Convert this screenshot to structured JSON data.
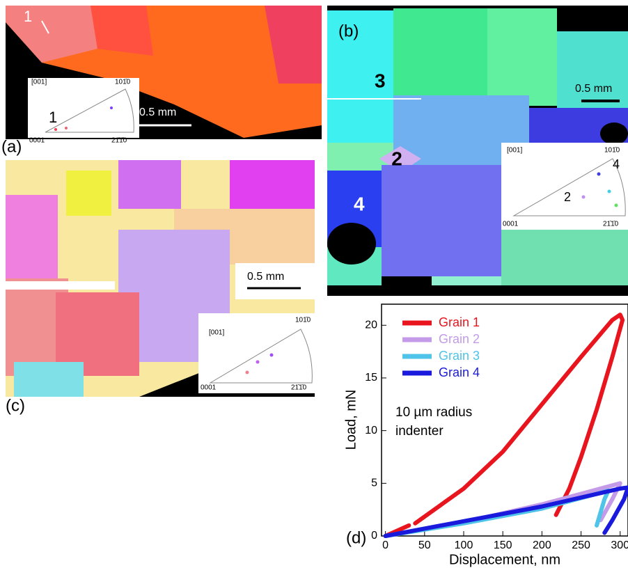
{
  "panels": {
    "a": {
      "label": "(a)",
      "grain": "1",
      "pole_grain": "1",
      "pole_title": "[001]",
      "pole_top": "101̄0",
      "pole_left": "0001",
      "pole_right": "21̄1̄0",
      "scale": "0.5 mm"
    },
    "b": {
      "label": "(b)",
      "grains": [
        "3",
        "2",
        "4"
      ],
      "pole_grains": [
        "4",
        "2"
      ],
      "pole_title": "[001]",
      "pole_top": "101̄0",
      "pole_left": "0001",
      "pole_right": "21̄1̄0",
      "scale": "0.5 mm"
    },
    "c": {
      "label": "(c)",
      "pole_title": "[001]",
      "pole_top": "101̄0",
      "pole_left": "0001",
      "pole_right": "21̄1̄0",
      "scale": "0.5 mm"
    }
  },
  "chart_data": {
    "type": "line",
    "label": "(d)",
    "x_label": "Displacement, nm",
    "y_label": "Load, mN",
    "annotations": [
      "10 µm radius",
      "indenter"
    ],
    "xlim": [
      -5,
      310
    ],
    "ylim": [
      0,
      22
    ],
    "xticks": [
      0,
      50,
      100,
      150,
      200,
      250,
      300
    ],
    "yticks": [
      0,
      5,
      10,
      15,
      20
    ],
    "grid": false,
    "legend": "upper left",
    "series": [
      {
        "name": "Grain 1",
        "color": "#e8141e",
        "x": [
          0,
          30,
          null,
          38,
          100,
          150,
          200,
          250,
          290,
          300,
          303,
          290,
          270,
          250,
          235,
          218
        ],
        "values": [
          0,
          1,
          null,
          1.2,
          4.5,
          8,
          12.5,
          17,
          20.5,
          21,
          20.5,
          17,
          12,
          7.5,
          4.5,
          2
        ]
      },
      {
        "name": "Grain 2",
        "color": "#c39be8",
        "x": [
          0,
          100,
          200,
          300,
          300,
          290,
          275
        ],
        "values": [
          0,
          1.3,
          3,
          5,
          5,
          3.5,
          1.5
        ]
      },
      {
        "name": "Grain 3",
        "color": "#4fc3e8",
        "x": [
          0,
          100,
          200,
          280,
          285,
          280,
          270
        ],
        "values": [
          0,
          1.2,
          2.6,
          4.2,
          4.3,
          3.5,
          1
        ]
      },
      {
        "name": "Grain 4",
        "color": "#1a1adc",
        "x": [
          0,
          100,
          200,
          300,
          310,
          305,
          290,
          280
        ],
        "values": [
          0,
          1.4,
          2.8,
          4.5,
          4.6,
          3.5,
          1.5,
          0.3
        ]
      }
    ]
  }
}
